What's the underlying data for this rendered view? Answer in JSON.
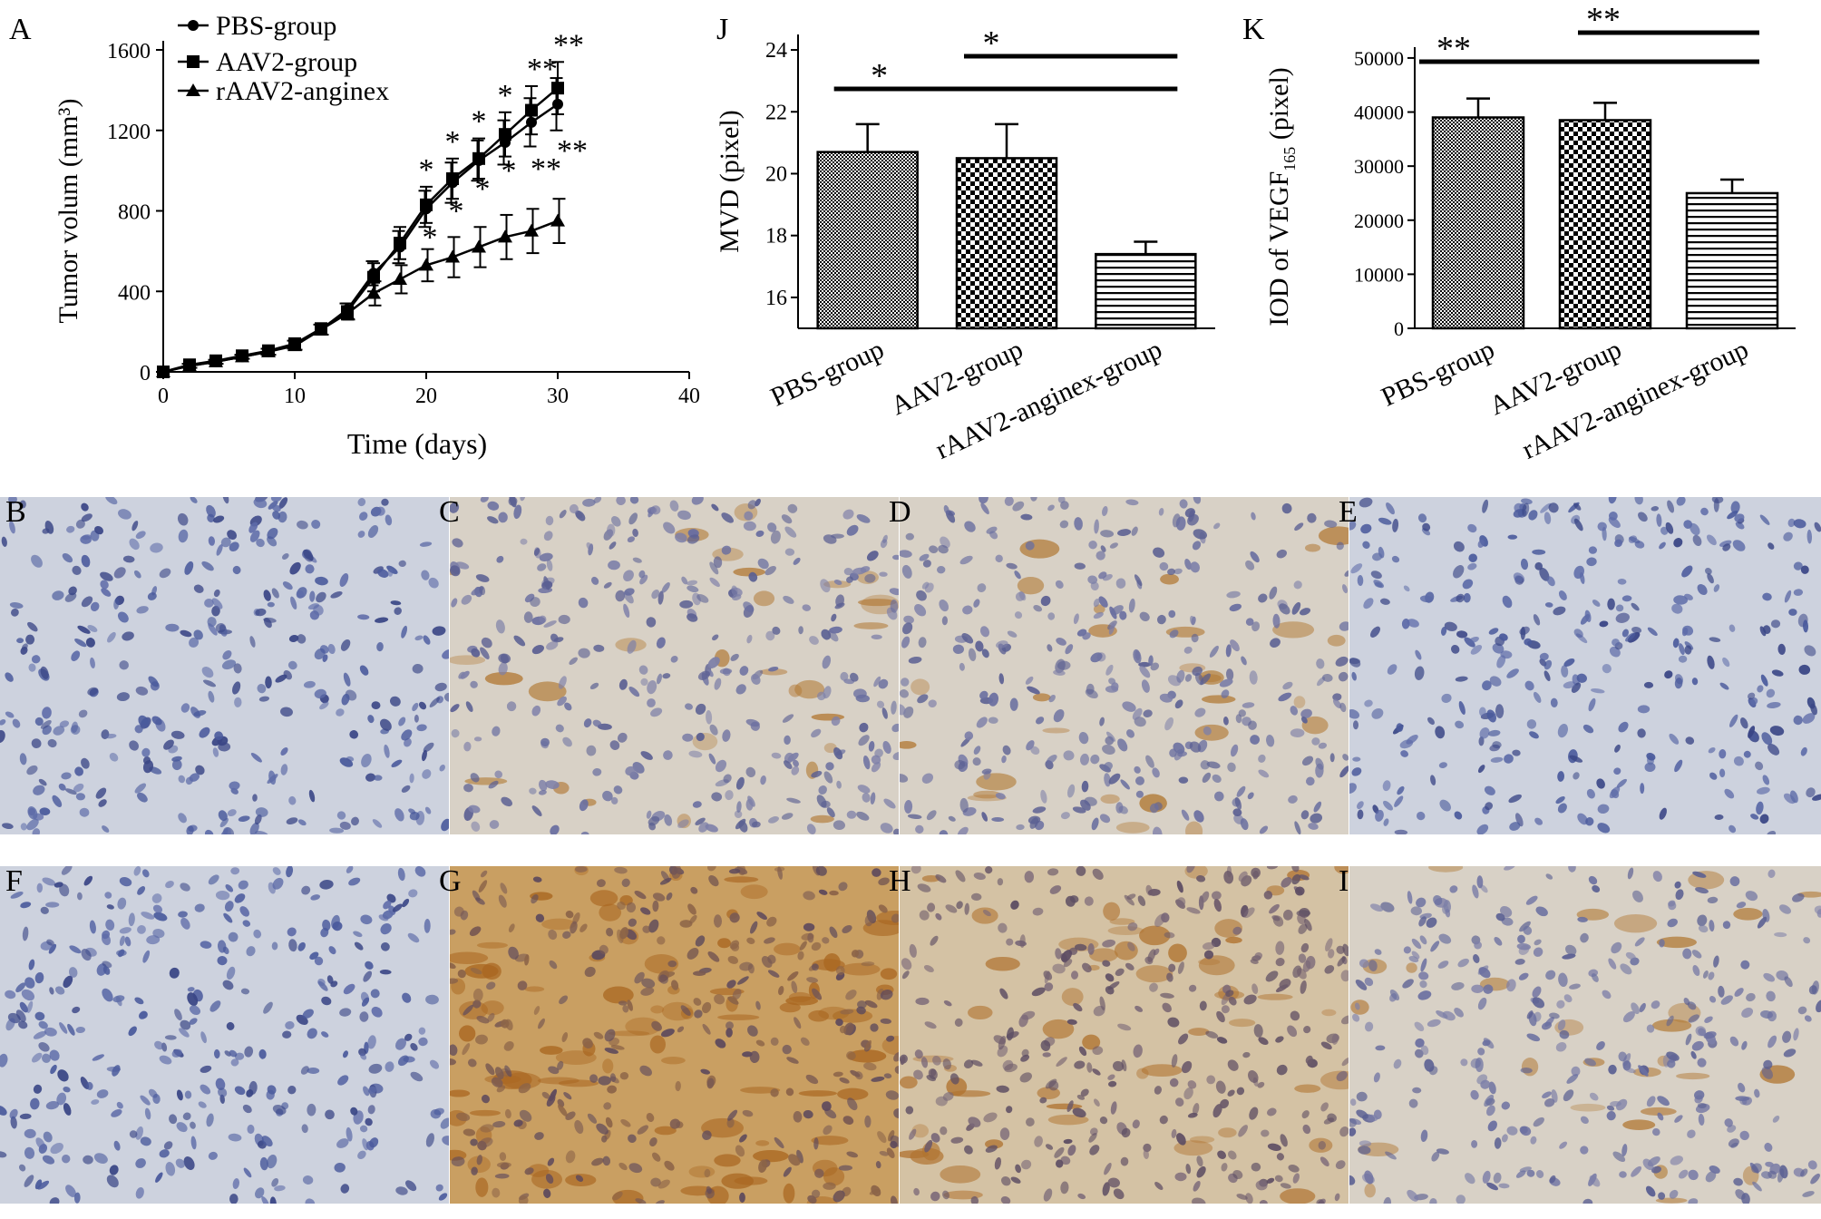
{
  "chart_data": [
    {
      "panel": "A",
      "type": "line",
      "xlabel": "Time (days)",
      "ylabel": "Tumor volum (mm³)",
      "xlim": [
        0,
        40
      ],
      "ylim": [
        0,
        1600
      ],
      "xticks": [
        0,
        10,
        20,
        30,
        40
      ],
      "yticks": [
        0,
        400,
        800,
        1200,
        1600
      ],
      "x": [
        0,
        2,
        4,
        6,
        8,
        10,
        12,
        14,
        16,
        18,
        20,
        22,
        24,
        26,
        28,
        30
      ],
      "series": [
        {
          "name": "PBS-group",
          "marker": "circle",
          "values": [
            0,
            30,
            50,
            75,
            100,
            135,
            210,
            310,
            490,
            620,
            810,
            940,
            1050,
            1140,
            1240,
            1330
          ],
          "errors": [
            0,
            10,
            10,
            10,
            15,
            20,
            25,
            30,
            60,
            80,
            90,
            100,
            100,
            110,
            120,
            130
          ]
        },
        {
          "name": "AAV2-group",
          "marker": "square",
          "values": [
            0,
            35,
            55,
            80,
            105,
            140,
            215,
            300,
            470,
            640,
            830,
            960,
            1060,
            1180,
            1300,
            1410
          ],
          "errors": [
            0,
            10,
            10,
            10,
            15,
            20,
            25,
            40,
            70,
            80,
            90,
            100,
            100,
            110,
            120,
            130
          ]
        },
        {
          "name": "rAAV2-anginex",
          "marker": "triangle",
          "values": [
            0,
            30,
            50,
            75,
            100,
            130,
            210,
            290,
            390,
            460,
            530,
            570,
            620,
            670,
            700,
            750
          ],
          "errors": [
            0,
            10,
            10,
            10,
            15,
            20,
            25,
            30,
            60,
            70,
            80,
            100,
            100,
            110,
            110,
            110
          ]
        }
      ],
      "legend_position": "top-left",
      "annotations": {
        "upper_stars": [
          "*",
          "*",
          "*",
          "*",
          "**",
          "**"
        ],
        "lower_stars": [
          "*",
          "*",
          "*",
          "*",
          "**",
          "**"
        ]
      }
    },
    {
      "panel": "J",
      "type": "bar",
      "categories": [
        "PBS-group",
        "AAV2-group",
        "rAAV2-anginex-group"
      ],
      "values": [
        20.7,
        20.5,
        17.4
      ],
      "errors": [
        0.9,
        1.1,
        0.4
      ],
      "ylabel": "MVD (pixel)",
      "ylim": [
        15,
        24.5
      ],
      "yticks": [
        16,
        18,
        20,
        22,
        24
      ],
      "significance": [
        {
          "from": 0,
          "to": 2,
          "label": "*"
        },
        {
          "from": 1,
          "to": 2,
          "label": "*"
        }
      ]
    },
    {
      "panel": "K",
      "type": "bar",
      "categories": [
        "PBS-group",
        "AAV2-group",
        "rAAV2-anginex-group"
      ],
      "values": [
        39000,
        38500,
        25000
      ],
      "errors": [
        3500,
        3200,
        2500
      ],
      "ylabel_main": "IOD of VEGF",
      "ylabel_sub": "165",
      "ylabel_unit": " (pixel)",
      "ylim": [
        0,
        52000
      ],
      "yticks": [
        0,
        10000,
        20000,
        30000,
        40000,
        50000
      ],
      "significance": [
        {
          "from": 0,
          "to": 2,
          "label": "**"
        },
        {
          "from": 1,
          "to": 2,
          "label": "**"
        }
      ]
    }
  ],
  "figure": {
    "panel_labels": {
      "A": "A",
      "J": "J",
      "K": "K"
    },
    "micrographs": [
      {
        "label": "B",
        "stain": "blue"
      },
      {
        "label": "C",
        "stain": "light-brown"
      },
      {
        "label": "D",
        "stain": "light-brown"
      },
      {
        "label": "E",
        "stain": "blue"
      },
      {
        "label": "F",
        "stain": "blue"
      },
      {
        "label": "G",
        "stain": "strong-brown"
      },
      {
        "label": "H",
        "stain": "medium-brown"
      },
      {
        "label": "I",
        "stain": "light-brown"
      }
    ],
    "colors": {
      "blue_bg": "#c9cfdc",
      "blue_nuclei": "#3a4f9a",
      "brown_bg": "#d6c8b0",
      "brown_stain": "#b5742a",
      "strong_brown_bg": "#cfa870"
    }
  }
}
